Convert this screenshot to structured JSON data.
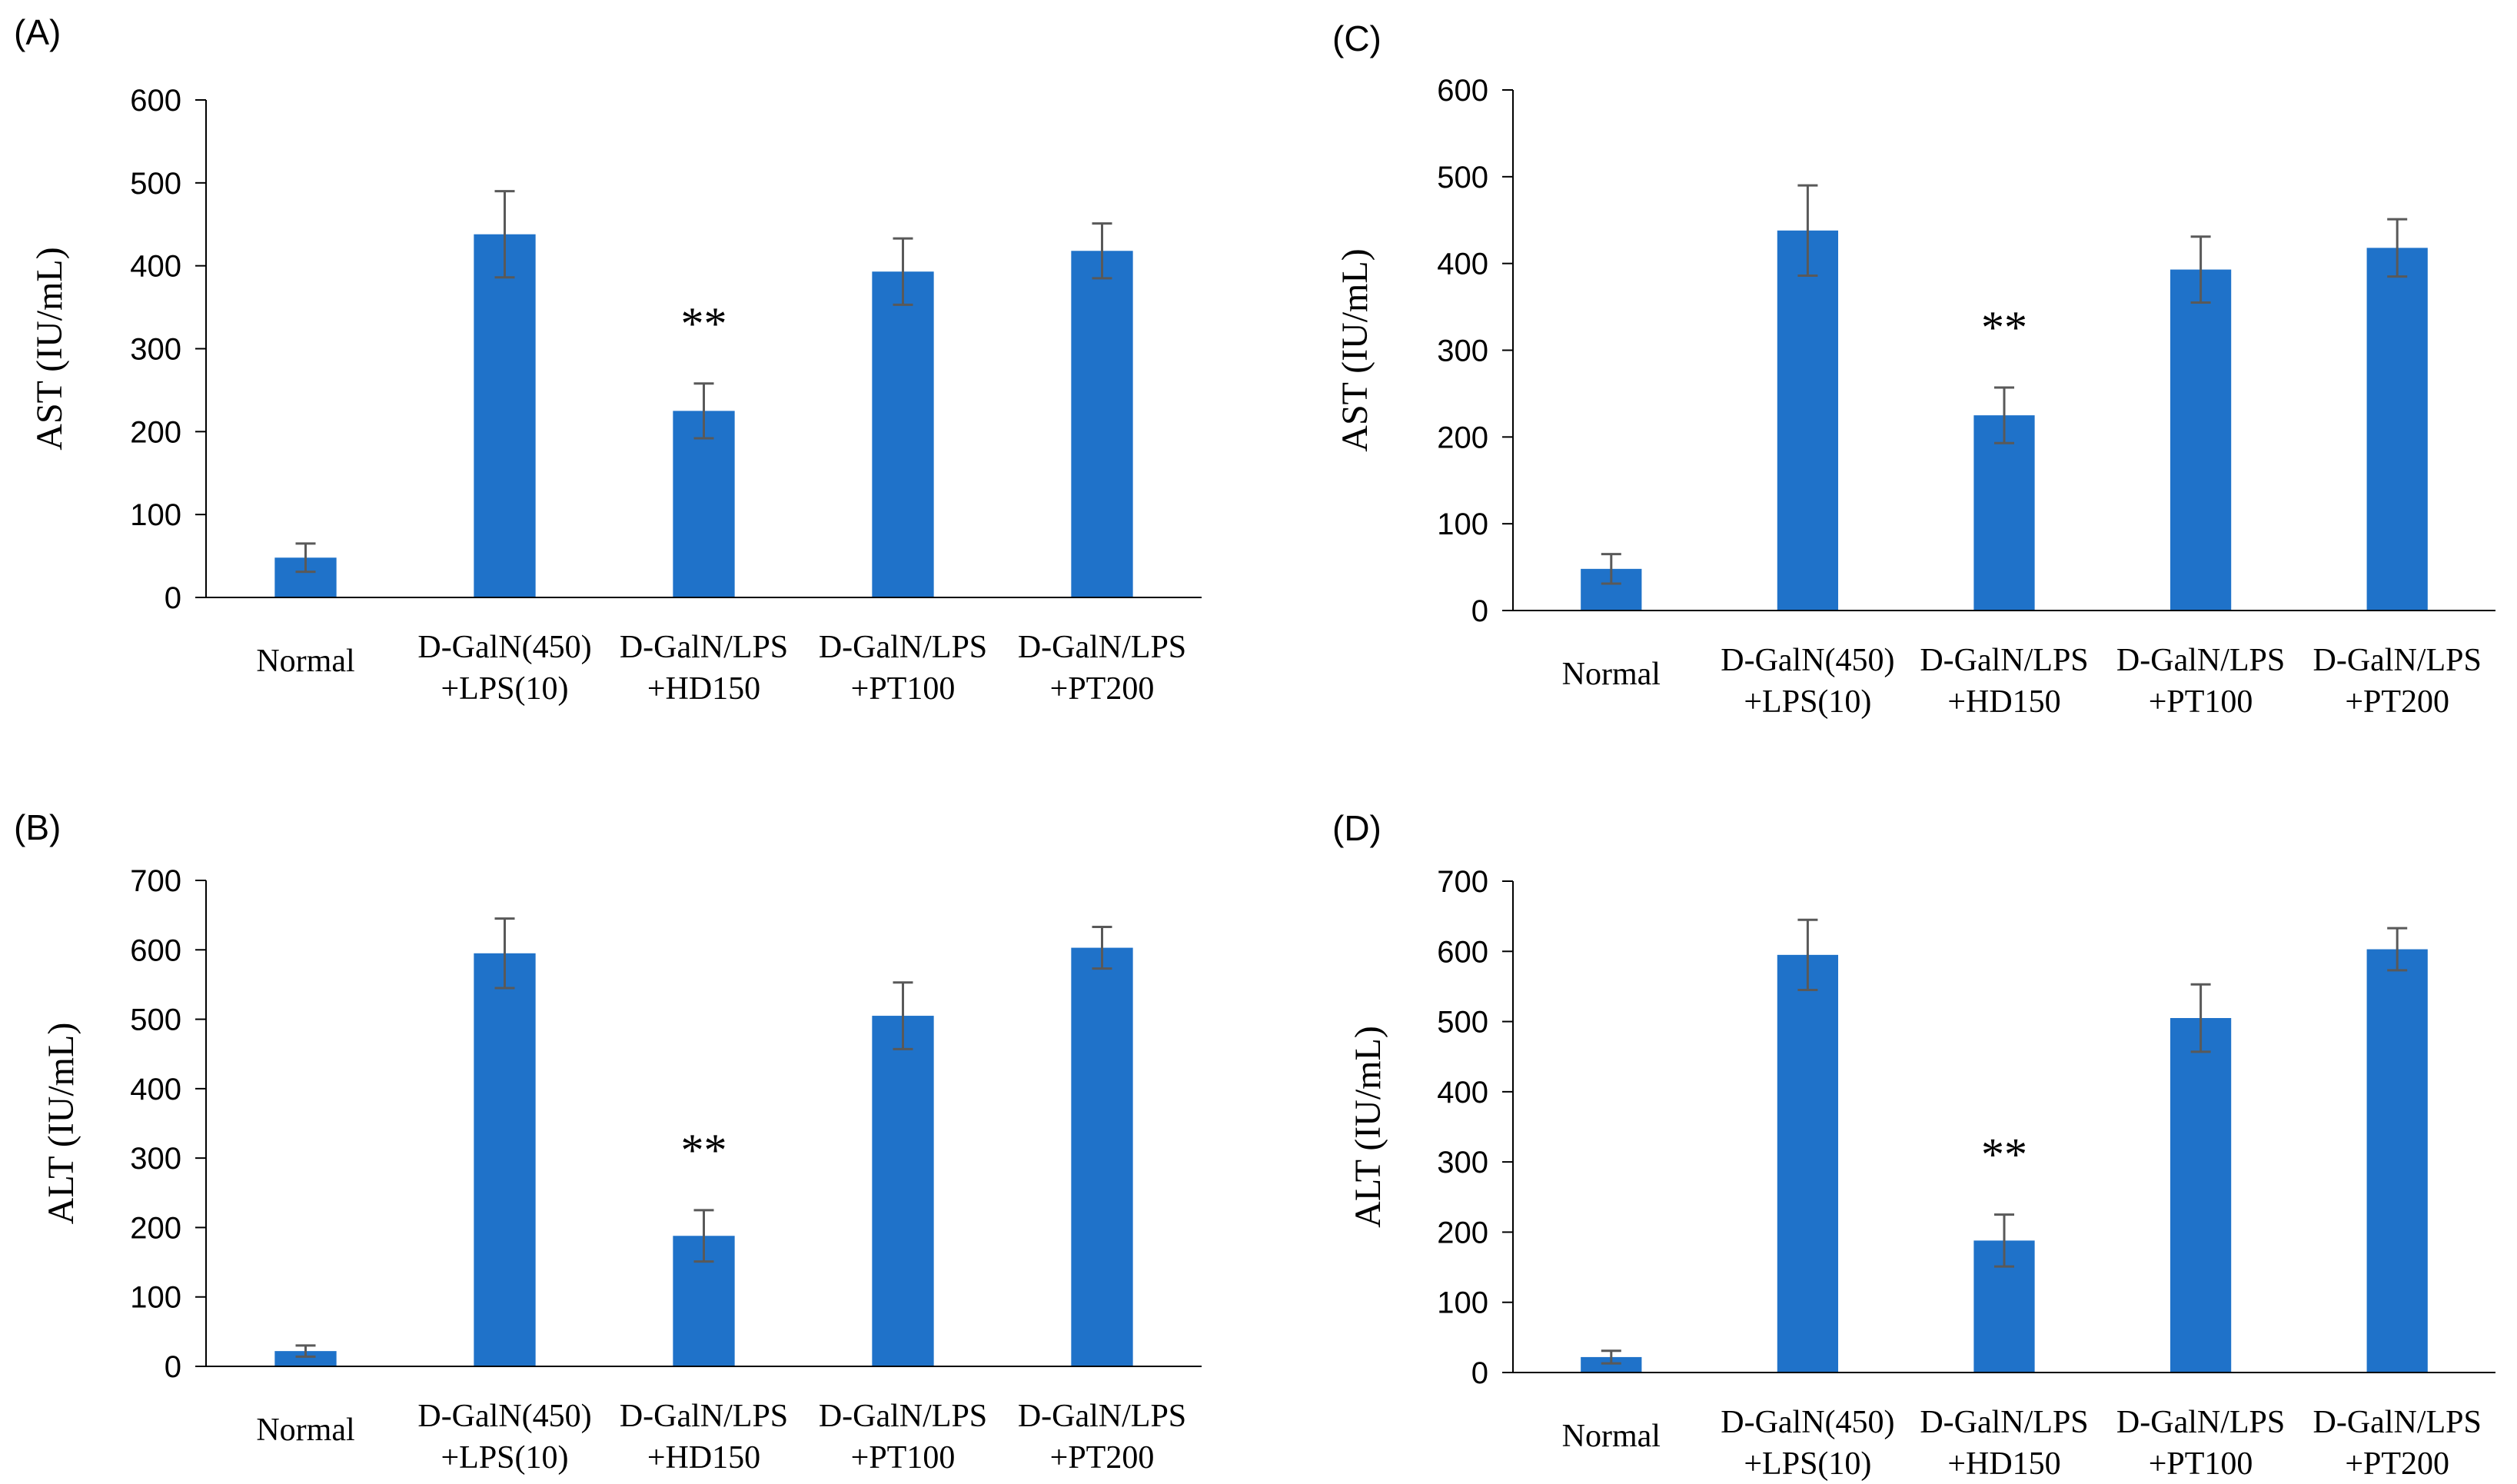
{
  "figure": {
    "panels": [
      "(A)",
      "(B)",
      "(C)",
      "(D)"
    ]
  },
  "chart_data": [
    {
      "panel": "(A)",
      "type": "bar",
      "title": "",
      "ylabel": "AST (IU/mL)",
      "xlabel": "",
      "ylim": [
        0,
        600
      ],
      "yticks": [
        0,
        100,
        200,
        300,
        400,
        500,
        600
      ],
      "categories": [
        [
          "Normal"
        ],
        [
          "D-GalN(450)",
          "+LPS(10)"
        ],
        [
          "D-GalN/LPS",
          "+HD150"
        ],
        [
          "D-GalN/LPS",
          "+PT100"
        ],
        [
          "D-GalN/LPS",
          "+PT200"
        ]
      ],
      "values": [
        48,
        438,
        225,
        393,
        418
      ],
      "errors": [
        17,
        52,
        33,
        40,
        33
      ],
      "annotations": [
        "",
        "",
        "**",
        "",
        ""
      ],
      "bar_color": "#1f72c9",
      "error_color": "#595959"
    },
    {
      "panel": "(B)",
      "type": "bar",
      "title": "",
      "ylabel": "ALT (IU/mL)",
      "xlabel": "",
      "ylim": [
        0,
        700
      ],
      "yticks": [
        0,
        100,
        200,
        300,
        400,
        500,
        600,
        700
      ],
      "categories": [
        [
          "Normal"
        ],
        [
          "D-GalN(450)",
          "+LPS(10)"
        ],
        [
          "D-GalN/LPS",
          "+HD150"
        ],
        [
          "D-GalN/LPS",
          "+PT100"
        ],
        [
          "D-GalN/LPS",
          "+PT200"
        ]
      ],
      "values": [
        22,
        595,
        188,
        505,
        603
      ],
      "errors": [
        8,
        50,
        37,
        48,
        30
      ],
      "annotations": [
        "",
        "",
        "**",
        "",
        ""
      ],
      "bar_color": "#1f72c9",
      "error_color": "#595959"
    },
    {
      "panel": "(C)",
      "type": "bar",
      "title": "",
      "ylabel": "AST (IU/mL)",
      "xlabel": "",
      "ylim": [
        0,
        600
      ],
      "yticks": [
        0,
        100,
        200,
        300,
        400,
        500,
        600
      ],
      "categories": [
        [
          "Normal"
        ],
        [
          "D-GalN(450)",
          "+LPS(10)"
        ],
        [
          "D-GalN/LPS",
          "+HD150"
        ],
        [
          "D-GalN/LPS",
          "+PT100"
        ],
        [
          "D-GalN/LPS",
          "+PT200"
        ]
      ],
      "values": [
        48,
        438,
        225,
        393,
        418
      ],
      "errors": [
        17,
        52,
        32,
        38,
        33
      ],
      "annotations": [
        "",
        "",
        "**",
        "",
        ""
      ],
      "bar_color": "#1f72c9",
      "error_color": "#595959"
    },
    {
      "panel": "(D)",
      "type": "bar",
      "title": "",
      "ylabel": "ALT (IU/mL)",
      "xlabel": "",
      "ylim": [
        0,
        700
      ],
      "yticks": [
        0,
        100,
        200,
        300,
        400,
        500,
        600,
        700
      ],
      "categories": [
        [
          "Normal"
        ],
        [
          "D-GalN(450)",
          "+LPS(10)"
        ],
        [
          "D-GalN/LPS",
          "+HD150"
        ],
        [
          "D-GalN/LPS",
          "+PT100"
        ],
        [
          "D-GalN/LPS",
          "+PT200"
        ]
      ],
      "values": [
        22,
        595,
        188,
        505,
        603
      ],
      "errors": [
        9,
        50,
        37,
        48,
        30
      ],
      "annotations": [
        "",
        "",
        "**",
        "",
        ""
      ],
      "bar_color": "#1f72c9",
      "error_color": "#595959"
    }
  ]
}
